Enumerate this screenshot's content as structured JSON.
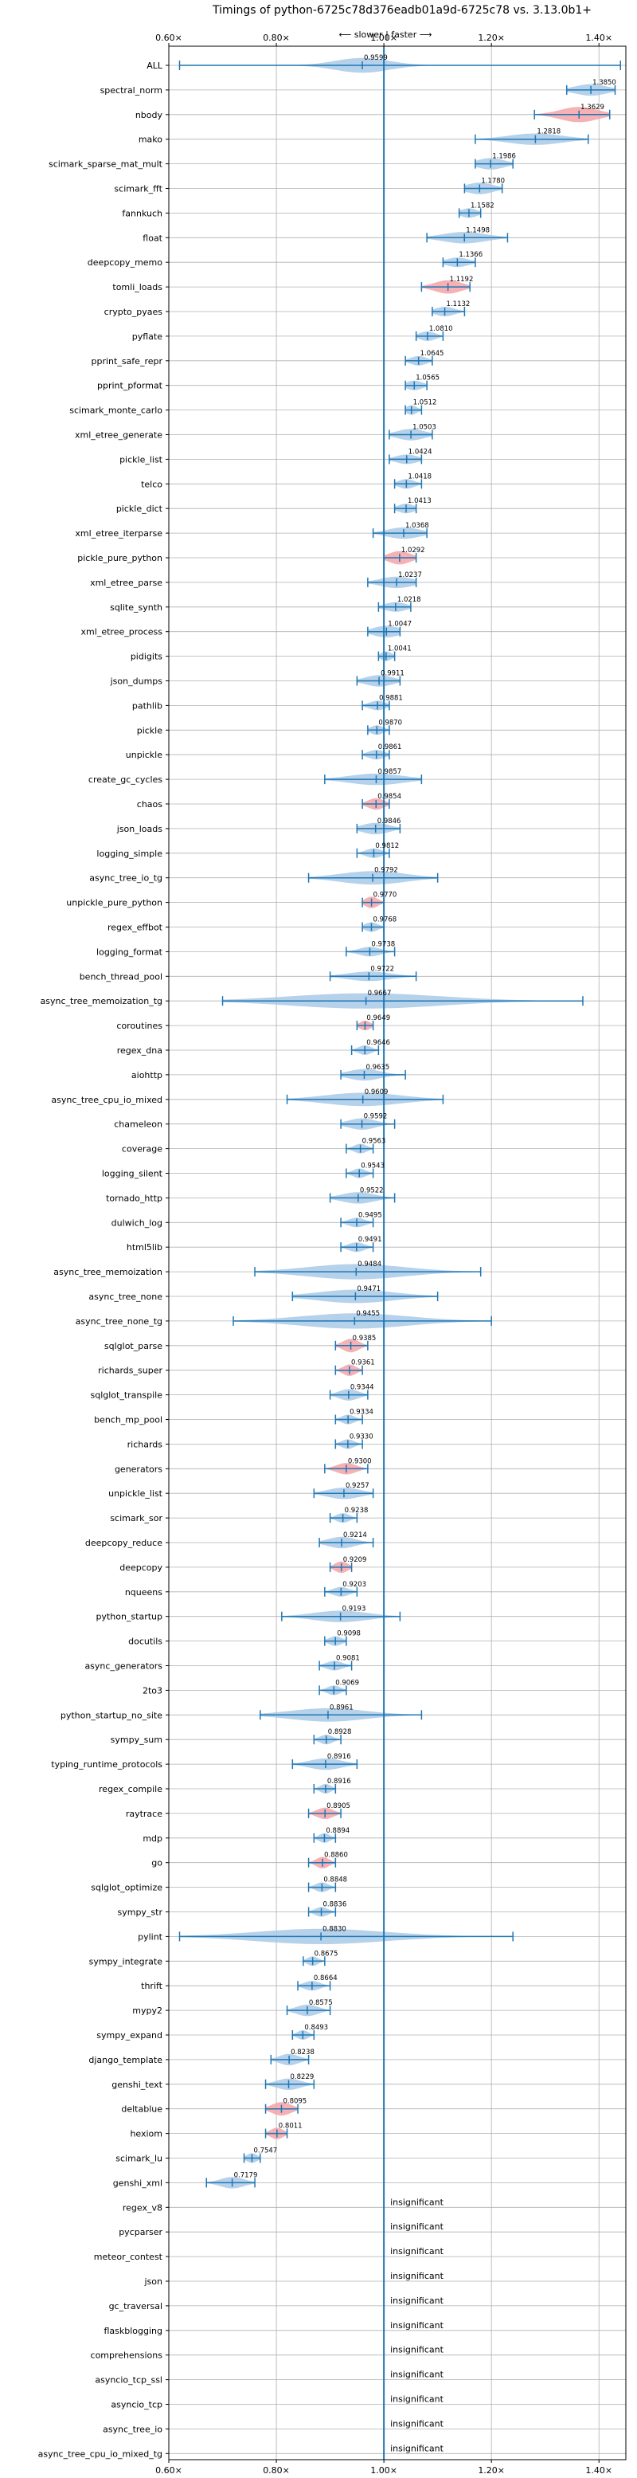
{
  "chart_data": {
    "type": "violin",
    "title": "Timings of python-6725c78d376eadb01a9d-6725c78 vs. 3.13.0b1+",
    "subtitle": "⟵ slower | faster ⟶",
    "xlim": [
      0.6,
      1.45
    ],
    "xticks": [
      0.6,
      0.8,
      1.0,
      1.2,
      1.4
    ],
    "xtick_labels": [
      "0.60×",
      "0.80×",
      "1.00×",
      "1.20×",
      "1.40×"
    ],
    "reference_line": 1.0,
    "grid": true,
    "insignificant_label": "insignificant",
    "colors": {
      "violin": "#a9c9e6",
      "highlight": "#f4a3a8",
      "line": "#1f77b4",
      "grid": "#b0b0b0"
    },
    "benchmarks": [
      {
        "name": "ALL",
        "value": 0.9599,
        "label": "0.9599",
        "lo": 0.62,
        "hi": 1.44,
        "w": 0.78,
        "spread": 0.05
      },
      {
        "name": "spectral_norm",
        "value": 1.385,
        "label": "1.3850",
        "lo": 1.34,
        "hi": 1.43,
        "w": 0.6,
        "spread": 0.03
      },
      {
        "name": "nbody",
        "value": 1.3629,
        "label": "1.3629",
        "lo": 1.28,
        "hi": 1.42,
        "w": 0.8,
        "spread": 0.035,
        "hl": true
      },
      {
        "name": "mako",
        "value": 1.2818,
        "label": "1.2818",
        "lo": 1.17,
        "hi": 1.38,
        "w": 0.6,
        "spread": 0.05
      },
      {
        "name": "scimark_sparse_mat_mult",
        "value": 1.1986,
        "label": "1.1986",
        "lo": 1.17,
        "hi": 1.24,
        "w": 0.6,
        "spread": 0.025
      },
      {
        "name": "scimark_fft",
        "value": 1.178,
        "label": "1.1780",
        "lo": 1.15,
        "hi": 1.22,
        "w": 0.6,
        "spread": 0.025
      },
      {
        "name": "fannkuch",
        "value": 1.1582,
        "label": "1.1582",
        "lo": 1.14,
        "hi": 1.18,
        "w": 0.5,
        "spread": 0.015
      },
      {
        "name": "float",
        "value": 1.1498,
        "label": "1.1498",
        "lo": 1.08,
        "hi": 1.23,
        "w": 0.6,
        "spread": 0.04
      },
      {
        "name": "deepcopy_memo",
        "value": 1.1366,
        "label": "1.1366",
        "lo": 1.11,
        "hi": 1.17,
        "w": 0.5,
        "spread": 0.02
      },
      {
        "name": "tomli_loads",
        "value": 1.1192,
        "label": "1.1192",
        "lo": 1.07,
        "hi": 1.16,
        "w": 0.7,
        "spread": 0.025,
        "hl": true
      },
      {
        "name": "crypto_pyaes",
        "value": 1.1132,
        "label": "1.1132",
        "lo": 1.09,
        "hi": 1.15,
        "w": 0.5,
        "spread": 0.018
      },
      {
        "name": "pyflate",
        "value": 1.081,
        "label": "1.0810",
        "lo": 1.06,
        "hi": 1.11,
        "w": 0.5,
        "spread": 0.015
      },
      {
        "name": "pprint_safe_repr",
        "value": 1.0645,
        "label": "1.0645",
        "lo": 1.04,
        "hi": 1.09,
        "w": 0.5,
        "spread": 0.015
      },
      {
        "name": "pprint_pformat",
        "value": 1.0565,
        "label": "1.0565",
        "lo": 1.04,
        "hi": 1.08,
        "w": 0.5,
        "spread": 0.015
      },
      {
        "name": "scimark_monte_carlo",
        "value": 1.0512,
        "label": "1.0512",
        "lo": 1.04,
        "hi": 1.07,
        "w": 0.5,
        "spread": 0.01
      },
      {
        "name": "xml_etree_generate",
        "value": 1.0503,
        "label": "1.0503",
        "lo": 1.01,
        "hi": 1.09,
        "w": 0.6,
        "spread": 0.025
      },
      {
        "name": "pickle_list",
        "value": 1.0424,
        "label": "1.0424",
        "lo": 1.01,
        "hi": 1.07,
        "w": 0.5,
        "spread": 0.02
      },
      {
        "name": "telco",
        "value": 1.0418,
        "label": "1.0418",
        "lo": 1.02,
        "hi": 1.07,
        "w": 0.5,
        "spread": 0.015
      },
      {
        "name": "pickle_dict",
        "value": 1.0413,
        "label": "1.0413",
        "lo": 1.02,
        "hi": 1.06,
        "w": 0.5,
        "spread": 0.015
      },
      {
        "name": "xml_etree_iterparse",
        "value": 1.0368,
        "label": "1.0368",
        "lo": 0.98,
        "hi": 1.08,
        "w": 0.6,
        "spread": 0.03
      },
      {
        "name": "pickle_pure_python",
        "value": 1.0292,
        "label": "1.0292",
        "lo": 1.0,
        "hi": 1.06,
        "w": 0.7,
        "spread": 0.02,
        "hl": true
      },
      {
        "name": "xml_etree_parse",
        "value": 1.0237,
        "label": "1.0237",
        "lo": 0.97,
        "hi": 1.06,
        "w": 0.6,
        "spread": 0.03
      },
      {
        "name": "sqlite_synth",
        "value": 1.0218,
        "label": "1.0218",
        "lo": 0.99,
        "hi": 1.05,
        "w": 0.5,
        "spread": 0.02
      },
      {
        "name": "xml_etree_process",
        "value": 1.0047,
        "label": "1.0047",
        "lo": 0.97,
        "hi": 1.03,
        "w": 0.6,
        "spread": 0.025
      },
      {
        "name": "pidigits",
        "value": 1.0041,
        "label": "1.0041",
        "lo": 0.99,
        "hi": 1.02,
        "w": 0.5,
        "spread": 0.01
      },
      {
        "name": "json_dumps",
        "value": 0.9911,
        "label": "0.9911",
        "lo": 0.95,
        "hi": 1.03,
        "w": 0.6,
        "spread": 0.025
      },
      {
        "name": "pathlib",
        "value": 0.9881,
        "label": "0.9881",
        "lo": 0.96,
        "hi": 1.01,
        "w": 0.5,
        "spread": 0.015
      },
      {
        "name": "pickle",
        "value": 0.987,
        "label": "0.9870",
        "lo": 0.97,
        "hi": 1.01,
        "w": 0.5,
        "spread": 0.012
      },
      {
        "name": "unpickle",
        "value": 0.9861,
        "label": "0.9861",
        "lo": 0.96,
        "hi": 1.01,
        "w": 0.5,
        "spread": 0.015
      },
      {
        "name": "create_gc_cycles",
        "value": 0.9857,
        "label": "0.9857",
        "lo": 0.89,
        "hi": 1.07,
        "w": 0.6,
        "spread": 0.05
      },
      {
        "name": "chaos",
        "value": 0.9854,
        "label": "0.9854",
        "lo": 0.96,
        "hi": 1.01,
        "w": 0.6,
        "spread": 0.015,
        "hl": true
      },
      {
        "name": "json_loads",
        "value": 0.9846,
        "label": "0.9846",
        "lo": 0.95,
        "hi": 1.03,
        "w": 0.6,
        "spread": 0.025
      },
      {
        "name": "logging_simple",
        "value": 0.9812,
        "label": "0.9812",
        "lo": 0.95,
        "hi": 1.01,
        "w": 0.5,
        "spread": 0.015
      },
      {
        "name": "async_tree_io_tg",
        "value": 0.9792,
        "label": "0.9792",
        "lo": 0.86,
        "hi": 1.1,
        "w": 0.7,
        "spread": 0.06
      },
      {
        "name": "unpickle_pure_python",
        "value": 0.977,
        "label": "0.9770",
        "lo": 0.96,
        "hi": 1.0,
        "w": 0.6,
        "spread": 0.012,
        "hl": true
      },
      {
        "name": "regex_effbot",
        "value": 0.9768,
        "label": "0.9768",
        "lo": 0.96,
        "hi": 1.0,
        "w": 0.5,
        "spread": 0.012
      },
      {
        "name": "logging_format",
        "value": 0.9738,
        "label": "0.9738",
        "lo": 0.93,
        "hi": 1.02,
        "w": 0.5,
        "spread": 0.02
      },
      {
        "name": "bench_thread_pool",
        "value": 0.9722,
        "label": "0.9722",
        "lo": 0.9,
        "hi": 1.06,
        "w": 0.5,
        "spread": 0.04
      },
      {
        "name": "async_tree_memoization_tg",
        "value": 0.9667,
        "label": "0.9667",
        "lo": 0.7,
        "hi": 1.37,
        "w": 0.8,
        "spread": 0.14
      },
      {
        "name": "coroutines",
        "value": 0.9649,
        "label": "0.9649",
        "lo": 0.95,
        "hi": 0.98,
        "w": 0.5,
        "spread": 0.01,
        "hl": true
      },
      {
        "name": "regex_dna",
        "value": 0.9646,
        "label": "0.9646",
        "lo": 0.94,
        "hi": 0.99,
        "w": 0.5,
        "spread": 0.012
      },
      {
        "name": "aiohttp",
        "value": 0.9635,
        "label": "0.9635",
        "lo": 0.92,
        "hi": 1.04,
        "w": 0.6,
        "spread": 0.03
      },
      {
        "name": "async_tree_cpu_io_mixed",
        "value": 0.9609,
        "label": "0.9609",
        "lo": 0.82,
        "hi": 1.11,
        "w": 0.7,
        "spread": 0.07
      },
      {
        "name": "chameleon",
        "value": 0.9592,
        "label": "0.9592",
        "lo": 0.92,
        "hi": 1.02,
        "w": 0.6,
        "spread": 0.025
      },
      {
        "name": "coverage",
        "value": 0.9563,
        "label": "0.9563",
        "lo": 0.93,
        "hi": 0.98,
        "w": 0.5,
        "spread": 0.012
      },
      {
        "name": "logging_silent",
        "value": 0.9543,
        "label": "0.9543",
        "lo": 0.93,
        "hi": 0.98,
        "w": 0.5,
        "spread": 0.012
      },
      {
        "name": "tornado_http",
        "value": 0.9522,
        "label": "0.9522",
        "lo": 0.9,
        "hi": 1.02,
        "w": 0.6,
        "spread": 0.03
      },
      {
        "name": "dulwich_log",
        "value": 0.9495,
        "label": "0.9495",
        "lo": 0.92,
        "hi": 0.98,
        "w": 0.5,
        "spread": 0.015
      },
      {
        "name": "html5lib",
        "value": 0.9491,
        "label": "0.9491",
        "lo": 0.92,
        "hi": 0.98,
        "w": 0.5,
        "spread": 0.015
      },
      {
        "name": "async_tree_memoization",
        "value": 0.9484,
        "label": "0.9484",
        "lo": 0.76,
        "hi": 1.18,
        "w": 0.8,
        "spread": 0.09
      },
      {
        "name": "async_tree_none",
        "value": 0.9471,
        "label": "0.9471",
        "lo": 0.83,
        "hi": 1.1,
        "w": 0.7,
        "spread": 0.07
      },
      {
        "name": "async_tree_none_tg",
        "value": 0.9455,
        "label": "0.9455",
        "lo": 0.72,
        "hi": 1.2,
        "w": 0.8,
        "spread": 0.1
      },
      {
        "name": "sqlglot_parse",
        "value": 0.9385,
        "label": "0.9385",
        "lo": 0.91,
        "hi": 0.97,
        "w": 0.7,
        "spread": 0.015,
        "hl": true
      },
      {
        "name": "richards_super",
        "value": 0.9361,
        "label": "0.9361",
        "lo": 0.91,
        "hi": 0.96,
        "w": 0.6,
        "spread": 0.012,
        "hl": true
      },
      {
        "name": "sqlglot_transpile",
        "value": 0.9344,
        "label": "0.9344",
        "lo": 0.9,
        "hi": 0.97,
        "w": 0.6,
        "spread": 0.018
      },
      {
        "name": "bench_mp_pool",
        "value": 0.9334,
        "label": "0.9334",
        "lo": 0.91,
        "hi": 0.96,
        "w": 0.5,
        "spread": 0.012
      },
      {
        "name": "richards",
        "value": 0.933,
        "label": "0.9330",
        "lo": 0.91,
        "hi": 0.96,
        "w": 0.5,
        "spread": 0.012
      },
      {
        "name": "generators",
        "value": 0.93,
        "label": "0.9300",
        "lo": 0.89,
        "hi": 0.97,
        "w": 0.6,
        "spread": 0.018,
        "hl": true
      },
      {
        "name": "unpickle_list",
        "value": 0.9257,
        "label": "0.9257",
        "lo": 0.87,
        "hi": 0.98,
        "w": 0.6,
        "spread": 0.03
      },
      {
        "name": "scimark_sor",
        "value": 0.9238,
        "label": "0.9238",
        "lo": 0.9,
        "hi": 0.95,
        "w": 0.5,
        "spread": 0.012
      },
      {
        "name": "deepcopy_reduce",
        "value": 0.9214,
        "label": "0.9214",
        "lo": 0.88,
        "hi": 0.98,
        "w": 0.6,
        "spread": 0.025
      },
      {
        "name": "deepcopy",
        "value": 0.9209,
        "label": "0.9209",
        "lo": 0.9,
        "hi": 0.94,
        "w": 0.6,
        "spread": 0.012,
        "hl": true
      },
      {
        "name": "nqueens",
        "value": 0.9203,
        "label": "0.9203",
        "lo": 0.89,
        "hi": 0.95,
        "w": 0.5,
        "spread": 0.015
      },
      {
        "name": "python_startup",
        "value": 0.9193,
        "label": "0.9193",
        "lo": 0.81,
        "hi": 1.03,
        "w": 0.6,
        "spread": 0.05
      },
      {
        "name": "docutils",
        "value": 0.9098,
        "label": "0.9098",
        "lo": 0.89,
        "hi": 0.93,
        "w": 0.5,
        "spread": 0.012
      },
      {
        "name": "async_generators",
        "value": 0.9081,
        "label": "0.9081",
        "lo": 0.88,
        "hi": 0.94,
        "w": 0.5,
        "spread": 0.015
      },
      {
        "name": "2to3",
        "value": 0.9069,
        "label": "0.9069",
        "lo": 0.88,
        "hi": 0.93,
        "w": 0.5,
        "spread": 0.012
      },
      {
        "name": "python_startup_no_site",
        "value": 0.8961,
        "label": "0.8961",
        "lo": 0.77,
        "hi": 1.07,
        "w": 0.7,
        "spread": 0.07
      },
      {
        "name": "sympy_sum",
        "value": 0.8928,
        "label": "0.8928",
        "lo": 0.87,
        "hi": 0.92,
        "w": 0.5,
        "spread": 0.012
      },
      {
        "name": "typing_runtime_protocols",
        "value": 0.8916,
        "label": "0.8916",
        "lo": 0.83,
        "hi": 0.95,
        "w": 0.6,
        "spread": 0.03
      },
      {
        "name": "regex_compile",
        "value": 0.8916,
        "label": "0.8916",
        "lo": 0.87,
        "hi": 0.91,
        "w": 0.5,
        "spread": 0.01
      },
      {
        "name": "raytrace",
        "value": 0.8905,
        "label": "0.8905",
        "lo": 0.86,
        "hi": 0.92,
        "w": 0.6,
        "spread": 0.015,
        "hl": true
      },
      {
        "name": "mdp",
        "value": 0.8894,
        "label": "0.8894",
        "lo": 0.87,
        "hi": 0.91,
        "w": 0.5,
        "spread": 0.01
      },
      {
        "name": "go",
        "value": 0.886,
        "label": "0.8860",
        "lo": 0.86,
        "hi": 0.91,
        "w": 0.6,
        "spread": 0.012,
        "hl": true
      },
      {
        "name": "sqlglot_optimize",
        "value": 0.8848,
        "label": "0.8848",
        "lo": 0.86,
        "hi": 0.91,
        "w": 0.5,
        "spread": 0.012
      },
      {
        "name": "sympy_str",
        "value": 0.8836,
        "label": "0.8836",
        "lo": 0.86,
        "hi": 0.91,
        "w": 0.5,
        "spread": 0.012
      },
      {
        "name": "pylint",
        "value": 0.883,
        "label": "0.8830",
        "lo": 0.62,
        "hi": 1.24,
        "w": 0.8,
        "spread": 0.12
      },
      {
        "name": "sympy_integrate",
        "value": 0.8675,
        "label": "0.8675",
        "lo": 0.85,
        "hi": 0.89,
        "w": 0.5,
        "spread": 0.01
      },
      {
        "name": "thrift",
        "value": 0.8664,
        "label": "0.8664",
        "lo": 0.84,
        "hi": 0.9,
        "w": 0.5,
        "spread": 0.015
      },
      {
        "name": "mypy2",
        "value": 0.8575,
        "label": "0.8575",
        "lo": 0.82,
        "hi": 0.9,
        "w": 0.6,
        "spread": 0.02
      },
      {
        "name": "sympy_expand",
        "value": 0.8493,
        "label": "0.8493",
        "lo": 0.83,
        "hi": 0.87,
        "w": 0.5,
        "spread": 0.01
      },
      {
        "name": "django_template",
        "value": 0.8238,
        "label": "0.8238",
        "lo": 0.79,
        "hi": 0.86,
        "w": 0.6,
        "spread": 0.018
      },
      {
        "name": "genshi_text",
        "value": 0.8229,
        "label": "0.8229",
        "lo": 0.78,
        "hi": 0.87,
        "w": 0.6,
        "spread": 0.022
      },
      {
        "name": "deltablue",
        "value": 0.8095,
        "label": "0.8095",
        "lo": 0.78,
        "hi": 0.84,
        "w": 0.7,
        "spread": 0.018,
        "hl": true
      },
      {
        "name": "hexiom",
        "value": 0.8011,
        "label": "0.8011",
        "lo": 0.78,
        "hi": 0.82,
        "w": 0.6,
        "spread": 0.012,
        "hl": true
      },
      {
        "name": "scimark_lu",
        "value": 0.7547,
        "label": "0.7547",
        "lo": 0.74,
        "hi": 0.77,
        "w": 0.5,
        "spread": 0.01
      },
      {
        "name": "genshi_xml",
        "value": 0.7179,
        "label": "0.7179",
        "lo": 0.67,
        "hi": 0.76,
        "w": 0.6,
        "spread": 0.022
      }
    ],
    "insignificant": [
      "regex_v8",
      "pycparser",
      "meteor_contest",
      "json",
      "gc_traversal",
      "flaskblogging",
      "comprehensions",
      "asyncio_tcp_ssl",
      "asyncio_tcp",
      "async_tree_io",
      "async_tree_cpu_io_mixed_tg"
    ]
  }
}
